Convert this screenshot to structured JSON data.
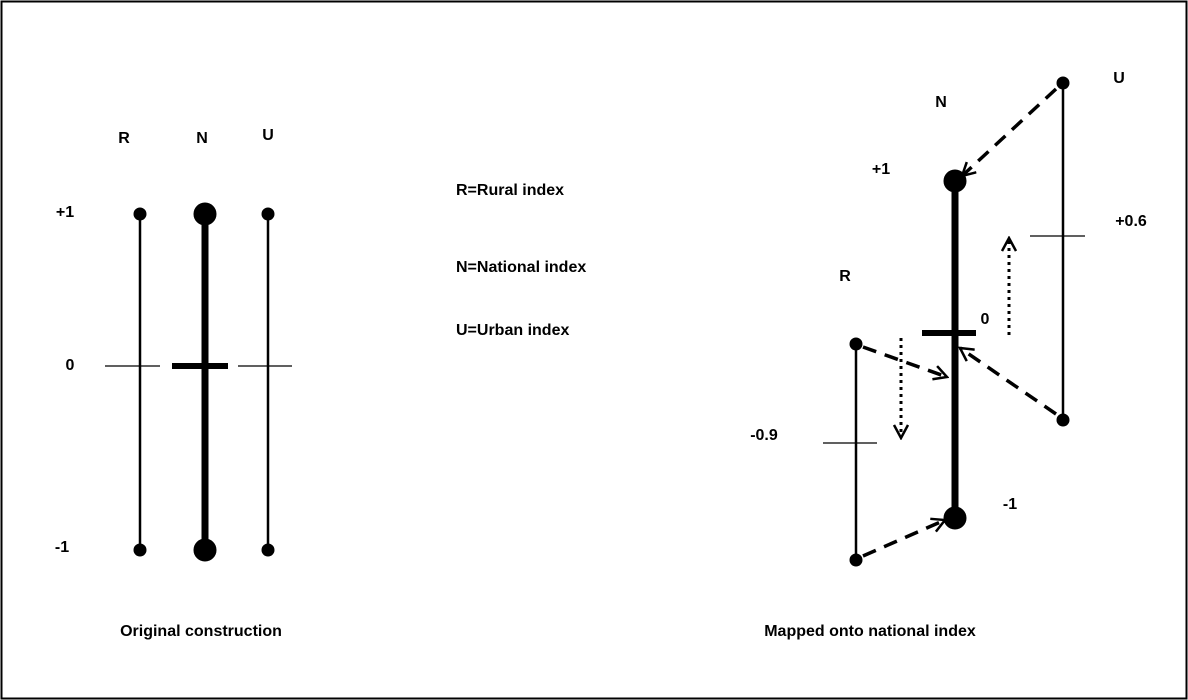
{
  "original": {
    "labels": {
      "r": "R",
      "n": "N",
      "u": "U"
    },
    "ticks": {
      "top": "+1",
      "zero": "0",
      "bottom": "-1"
    },
    "caption": "Original construction"
  },
  "legend": {
    "r": "R=Rural index",
    "n": "N=National index",
    "u": "U=Urban index"
  },
  "mapped": {
    "labels": {
      "n": "N",
      "u": "U",
      "r": "R"
    },
    "ticks": {
      "n_top": "+1",
      "n_zero": "0",
      "n_bottom": "-1",
      "u_mid": "+0.6",
      "r_mid": "-0.9"
    },
    "caption": "Mapped onto national index"
  }
}
